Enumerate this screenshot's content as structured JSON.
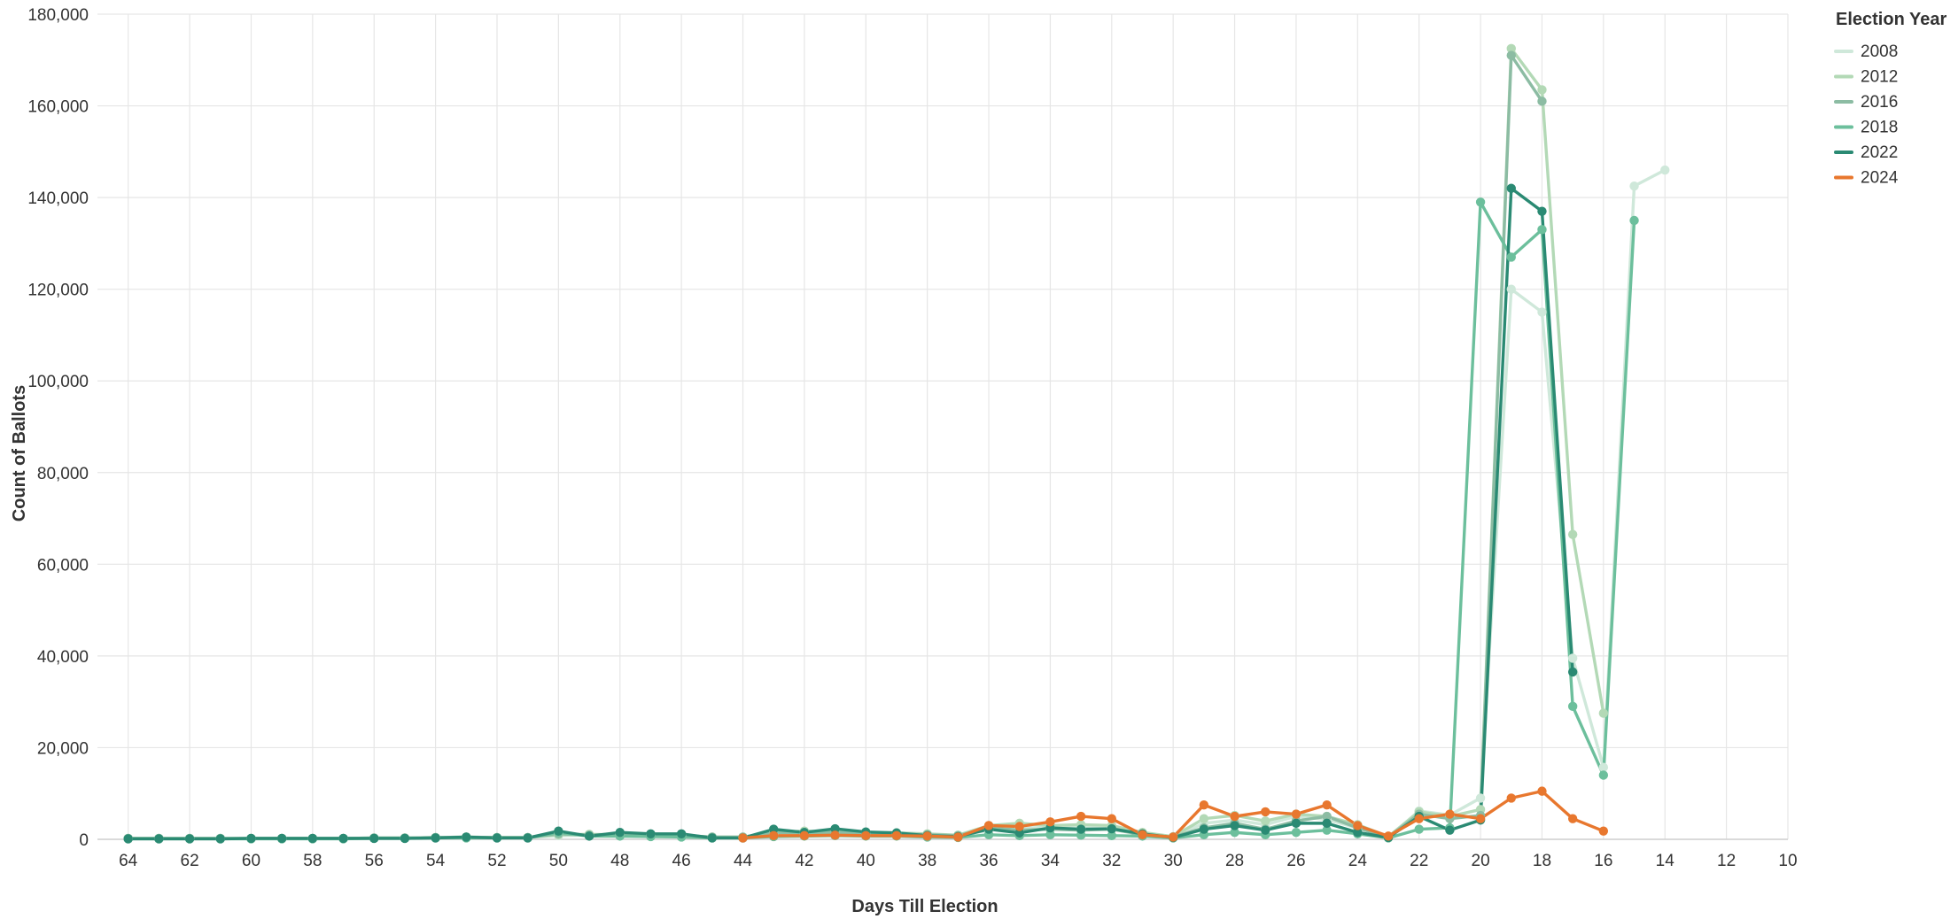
{
  "chart_data": {
    "type": "line",
    "xlabel": "Days Till Election",
    "ylabel": "Count of Ballots",
    "xlim": [
      65,
      10
    ],
    "ylim": [
      0,
      180000
    ],
    "x_ticks": [
      64,
      62,
      60,
      58,
      56,
      54,
      52,
      50,
      48,
      46,
      44,
      42,
      40,
      38,
      36,
      34,
      32,
      30,
      28,
      26,
      24,
      22,
      20,
      18,
      16,
      14,
      12,
      10
    ],
    "x_tick_labels": [
      "64",
      "62",
      "60",
      "58",
      "56",
      "54",
      "52",
      "50",
      "48",
      "46",
      "44",
      "42",
      "40",
      "38",
      "36",
      "34",
      "32",
      "30",
      "28",
      "26",
      "24",
      "22",
      "20",
      "18",
      "16",
      "14",
      "12",
      "10"
    ],
    "y_ticks": [
      0,
      20000,
      40000,
      60000,
      80000,
      100000,
      120000,
      140000,
      160000,
      180000
    ],
    "y_tick_labels": [
      "0",
      "20,000",
      "40,000",
      "60,000",
      "80,000",
      "100,000",
      "120,000",
      "140,000",
      "160,000",
      "180,000"
    ],
    "grid": true,
    "x_reversed": true,
    "legend": {
      "title": "Election Year",
      "position": "top-right"
    },
    "series": [
      {
        "name": "2008",
        "color": "#cfe8da",
        "points": [
          [
            64,
            200
          ],
          [
            63,
            200
          ],
          [
            62,
            200
          ],
          [
            61,
            200
          ],
          [
            60,
            200
          ],
          [
            59,
            200
          ],
          [
            58,
            200
          ],
          [
            57,
            200
          ],
          [
            56,
            300
          ],
          [
            55,
            300
          ],
          [
            54,
            400
          ],
          [
            53,
            500
          ],
          [
            52,
            400
          ],
          [
            51,
            400
          ],
          [
            50,
            800
          ],
          [
            49,
            900
          ],
          [
            48,
            800
          ],
          [
            47,
            800
          ],
          [
            46,
            700
          ],
          [
            45,
            500
          ],
          [
            44,
            500
          ],
          [
            43,
            1000
          ],
          [
            42,
            1200
          ],
          [
            41,
            1300
          ],
          [
            40,
            1200
          ],
          [
            39,
            1200
          ],
          [
            38,
            1000
          ],
          [
            37,
            800
          ],
          [
            36,
            2000
          ],
          [
            35,
            2500
          ],
          [
            34,
            2600
          ],
          [
            33,
            2500
          ],
          [
            32,
            2400
          ],
          [
            31,
            1200
          ],
          [
            30,
            500
          ],
          [
            29,
            3500
          ],
          [
            28,
            4200
          ],
          [
            27,
            3200
          ],
          [
            26,
            5000
          ],
          [
            25,
            4300
          ],
          [
            24,
            2500
          ],
          [
            23,
            500
          ],
          [
            22,
            6200
          ],
          [
            21,
            5300
          ],
          [
            20,
            9000
          ],
          [
            19,
            120000
          ],
          [
            18,
            115000
          ],
          [
            17,
            39500
          ],
          [
            16,
            15700
          ],
          [
            15,
            142500
          ],
          [
            14,
            146000
          ]
        ]
      },
      {
        "name": "2012",
        "color": "#b3d9b6",
        "points": [
          [
            64,
            200
          ],
          [
            63,
            200
          ],
          [
            62,
            200
          ],
          [
            61,
            200
          ],
          [
            60,
            200
          ],
          [
            59,
            200
          ],
          [
            58,
            200
          ],
          [
            57,
            200
          ],
          [
            56,
            300
          ],
          [
            55,
            300
          ],
          [
            54,
            400
          ],
          [
            53,
            500
          ],
          [
            52,
            400
          ],
          [
            51,
            400
          ],
          [
            50,
            1000
          ],
          [
            49,
            1100
          ],
          [
            48,
            1000
          ],
          [
            47,
            900
          ],
          [
            46,
            800
          ],
          [
            45,
            500
          ],
          [
            44,
            500
          ],
          [
            43,
            1500
          ],
          [
            42,
            1800
          ],
          [
            41,
            1600
          ],
          [
            40,
            1500
          ],
          [
            39,
            1400
          ],
          [
            38,
            1200
          ],
          [
            37,
            900
          ],
          [
            36,
            3000
          ],
          [
            35,
            3500
          ],
          [
            34,
            3000
          ],
          [
            33,
            3200
          ],
          [
            32,
            3000
          ],
          [
            31,
            1500
          ],
          [
            30,
            600
          ],
          [
            29,
            4500
          ],
          [
            28,
            5200
          ],
          [
            27,
            4000
          ],
          [
            26,
            5500
          ],
          [
            25,
            5000
          ],
          [
            24,
            3200
          ],
          [
            23,
            600
          ],
          [
            22,
            6000
          ],
          [
            21,
            5000
          ],
          [
            20,
            6500
          ],
          [
            19,
            172500
          ],
          [
            18,
            163500
          ],
          [
            17,
            66500
          ],
          [
            16,
            27500
          ]
        ]
      },
      {
        "name": "2016",
        "color": "#8cbca3",
        "points": [
          [
            64,
            200
          ],
          [
            63,
            200
          ],
          [
            62,
            200
          ],
          [
            61,
            200
          ],
          [
            60,
            200
          ],
          [
            59,
            200
          ],
          [
            58,
            200
          ],
          [
            57,
            200
          ],
          [
            56,
            300
          ],
          [
            55,
            300
          ],
          [
            54,
            400
          ],
          [
            53,
            500
          ],
          [
            52,
            400
          ],
          [
            51,
            400
          ],
          [
            50,
            1200
          ],
          [
            49,
            900
          ],
          [
            48,
            1200
          ],
          [
            47,
            1100
          ],
          [
            46,
            900
          ],
          [
            45,
            500
          ],
          [
            44,
            500
          ],
          [
            43,
            1500
          ],
          [
            42,
            1400
          ],
          [
            41,
            1500
          ],
          [
            40,
            1300
          ],
          [
            39,
            1200
          ],
          [
            38,
            1000
          ],
          [
            37,
            800
          ],
          [
            36,
            2500
          ],
          [
            35,
            2000
          ],
          [
            34,
            2200
          ],
          [
            33,
            2000
          ],
          [
            32,
            2200
          ],
          [
            31,
            1000
          ],
          [
            30,
            500
          ],
          [
            29,
            2500
          ],
          [
            28,
            3500
          ],
          [
            27,
            2200
          ],
          [
            26,
            4000
          ],
          [
            25,
            5000
          ],
          [
            24,
            2500
          ],
          [
            23,
            500
          ],
          [
            22,
            5500
          ],
          [
            21,
            4500
          ],
          [
            20,
            5200
          ],
          [
            19,
            171000
          ],
          [
            18,
            161000
          ]
        ]
      },
      {
        "name": "2018",
        "color": "#6cbf9c",
        "points": [
          [
            64,
            100
          ],
          [
            63,
            100
          ],
          [
            62,
            100
          ],
          [
            61,
            100
          ],
          [
            60,
            100
          ],
          [
            59,
            100
          ],
          [
            58,
            100
          ],
          [
            57,
            100
          ],
          [
            56,
            200
          ],
          [
            55,
            200
          ],
          [
            54,
            300
          ],
          [
            53,
            300
          ],
          [
            52,
            300
          ],
          [
            51,
            300
          ],
          [
            50,
            1500
          ],
          [
            49,
            700
          ],
          [
            48,
            700
          ],
          [
            47,
            600
          ],
          [
            46,
            500
          ],
          [
            45,
            300
          ],
          [
            44,
            300
          ],
          [
            43,
            600
          ],
          [
            42,
            700
          ],
          [
            41,
            800
          ],
          [
            40,
            700
          ],
          [
            39,
            700
          ],
          [
            38,
            500
          ],
          [
            37,
            400
          ],
          [
            36,
            1000
          ],
          [
            35,
            800
          ],
          [
            34,
            1000
          ],
          [
            33,
            900
          ],
          [
            32,
            800
          ],
          [
            31,
            700
          ],
          [
            30,
            300
          ],
          [
            29,
            1000
          ],
          [
            28,
            1500
          ],
          [
            27,
            1000
          ],
          [
            26,
            1500
          ],
          [
            25,
            2000
          ],
          [
            24,
            1200
          ],
          [
            23,
            300
          ],
          [
            22,
            2200
          ],
          [
            21,
            2500
          ],
          [
            20,
            139000
          ],
          [
            19,
            127000
          ],
          [
            18,
            133000
          ],
          [
            17,
            29000
          ],
          [
            16,
            14000
          ],
          [
            15,
            135000
          ]
        ]
      },
      {
        "name": "2022",
        "color": "#2a8a73",
        "points": [
          [
            64,
            100
          ],
          [
            63,
            100
          ],
          [
            62,
            100
          ],
          [
            61,
            100
          ],
          [
            60,
            200
          ],
          [
            59,
            200
          ],
          [
            58,
            200
          ],
          [
            57,
            200
          ],
          [
            56,
            200
          ],
          [
            55,
            200
          ],
          [
            54,
            300
          ],
          [
            53,
            500
          ],
          [
            52,
            300
          ],
          [
            51,
            300
          ],
          [
            50,
            1800
          ],
          [
            49,
            700
          ],
          [
            48,
            1500
          ],
          [
            47,
            1200
          ],
          [
            46,
            1200
          ],
          [
            45,
            300
          ],
          [
            44,
            300
          ],
          [
            43,
            2200
          ],
          [
            42,
            1500
          ],
          [
            41,
            2300
          ],
          [
            40,
            1600
          ],
          [
            39,
            1400
          ],
          [
            38,
            800
          ],
          [
            37,
            600
          ],
          [
            36,
            2200
          ],
          [
            35,
            1400
          ],
          [
            34,
            2500
          ],
          [
            33,
            2200
          ],
          [
            32,
            2300
          ],
          [
            31,
            1200
          ],
          [
            30,
            400
          ],
          [
            29,
            2200
          ],
          [
            28,
            3000
          ],
          [
            27,
            2000
          ],
          [
            26,
            3500
          ],
          [
            25,
            3500
          ],
          [
            24,
            1500
          ],
          [
            23,
            400
          ],
          [
            22,
            5000
          ],
          [
            21,
            2000
          ],
          [
            20,
            4200
          ],
          [
            19,
            142000
          ],
          [
            18,
            137000
          ],
          [
            17,
            36500
          ]
        ]
      },
      {
        "name": "2024",
        "color": "#e8772e",
        "points": [
          [
            44,
            300
          ],
          [
            43,
            800
          ],
          [
            42,
            800
          ],
          [
            41,
            900
          ],
          [
            40,
            800
          ],
          [
            39,
            800
          ],
          [
            38,
            700
          ],
          [
            37,
            500
          ],
          [
            36,
            3000
          ],
          [
            35,
            2800
          ],
          [
            34,
            3800
          ],
          [
            33,
            5000
          ],
          [
            32,
            4500
          ],
          [
            31,
            1000
          ],
          [
            30,
            500
          ],
          [
            29,
            7500
          ],
          [
            28,
            5000
          ],
          [
            27,
            6000
          ],
          [
            26,
            5500
          ],
          [
            25,
            7500
          ],
          [
            24,
            3000
          ],
          [
            23,
            700
          ],
          [
            22,
            4500
          ],
          [
            21,
            5500
          ],
          [
            20,
            4500
          ],
          [
            19,
            9000
          ],
          [
            18,
            10500
          ],
          [
            17,
            4500
          ],
          [
            16,
            1800
          ]
        ]
      }
    ]
  }
}
